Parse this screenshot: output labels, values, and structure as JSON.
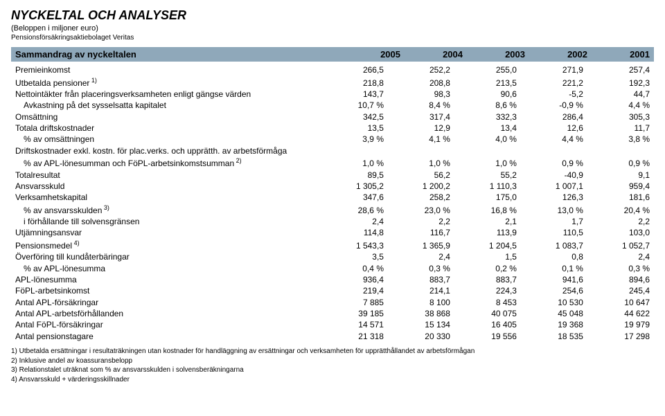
{
  "header": {
    "title": "NYCKELTAL OCH ANALYSER",
    "subtitle": "(Beloppen i miljoner euro)",
    "company": "Pensionsförsäkringsaktiebolaget Veritas"
  },
  "band": {
    "label": "Sammandrag av nyckeltalen",
    "years": [
      "2005",
      "2004",
      "2003",
      "2002",
      "2001"
    ],
    "bg_color": "#8fa8ba"
  },
  "rows": [
    {
      "label": "Premieinkomst",
      "v": [
        "266,5",
        "252,2",
        "255,0",
        "271,9",
        "257,4"
      ]
    },
    {
      "label": "Utbetalda pensioner",
      "sup": "1)",
      "v": [
        "218,8",
        "208,8",
        "213,5",
        "221,2",
        "192,3"
      ]
    },
    {
      "label": "Nettointäkter från placeringsverksamheten enligt gängse värden",
      "v": [
        "143,7",
        "98,3",
        "90,6",
        "-5,2",
        "44,7"
      ]
    },
    {
      "label": "Avkastning på det sysselsatta kapitalet",
      "indent": 1,
      "v": [
        "10,7 %",
        "8,4 %",
        "8,6 %",
        "-0,9 %",
        "4,4 %"
      ]
    },
    {
      "label": "Omsättning",
      "v": [
        "342,5",
        "317,4",
        "332,3",
        "286,4",
        "305,3"
      ]
    },
    {
      "label": "Totala driftskostnader",
      "v": [
        "13,5",
        "12,9",
        "13,4",
        "12,6",
        "11,7"
      ]
    },
    {
      "label": "% av omsättningen",
      "indent": 1,
      "v": [
        "3,9 %",
        "4,1 %",
        "4,0 %",
        "4,4 %",
        "3,8 %"
      ]
    },
    {
      "label": "Driftskostnader exkl. kostn. för plac.verks. och upprätth. av arbetsförmåga",
      "v": [
        "",
        "",
        "",
        "",
        ""
      ]
    },
    {
      "label": "% av APL-lönesumman och FöPL-arbetsinkomstsumman",
      "sup": "2)",
      "indent": 1,
      "v": [
        "1,0 %",
        "1,0 %",
        "1,0 %",
        "0,9 %",
        "0,9 %"
      ]
    },
    {
      "label": "Totalresultat",
      "v": [
        "89,5",
        "56,2",
        "55,2",
        "-40,9",
        "9,1"
      ]
    },
    {
      "label": "Ansvarsskuld",
      "v": [
        "1 305,2",
        "1 200,2",
        "1 110,3",
        "1 007,1",
        "959,4"
      ]
    },
    {
      "label": "Verksamhetskapital",
      "v": [
        "347,6",
        "258,2",
        "175,0",
        "126,3",
        "181,6"
      ]
    },
    {
      "label": "% av ansvarsskulden",
      "sup": "3)",
      "indent": 1,
      "v": [
        "28,6 %",
        "23,0 %",
        "16,8 %",
        "13,0 %",
        "20,4 %"
      ]
    },
    {
      "label": "i förhållande till solvensgränsen",
      "indent": 1,
      "v": [
        "2,4",
        "2,2",
        "2,1",
        "1,7",
        "2,2"
      ]
    },
    {
      "label": "Utjämningsansvar",
      "v": [
        "114,8",
        "116,7",
        "113,9",
        "110,5",
        "103,0"
      ]
    },
    {
      "label": "Pensionsmedel",
      "sup": "4)",
      "v": [
        "1 543,3",
        "1 365,9",
        "1 204,5",
        "1 083,7",
        "1 052,7"
      ]
    },
    {
      "label": "Överföring till kundåterbäringar",
      "v": [
        "3,5",
        "2,4",
        "1,5",
        "0,8",
        "2,4"
      ]
    },
    {
      "label": "% av APL-lönesumma",
      "indent": 1,
      "v": [
        "0,4 %",
        "0,3 %",
        "0,2 %",
        "0,1 %",
        "0,3 %"
      ]
    },
    {
      "label": "APL-lönesumma",
      "v": [
        "936,4",
        "883,7",
        "883,7",
        "941,6",
        "894,6"
      ]
    },
    {
      "label": "FöPL-arbetsinkomst",
      "v": [
        "219,4",
        "214,1",
        "224,3",
        "254,6",
        "245,4"
      ]
    },
    {
      "label": "Antal APL-försäkringar",
      "v": [
        "7 885",
        "8 100",
        "8 453",
        "10 530",
        "10 647"
      ]
    },
    {
      "label": "Antal APL-arbetsförhållanden",
      "v": [
        "39 185",
        "38 868",
        "40 075",
        "45 048",
        "44 622"
      ]
    },
    {
      "label": "Antal FöPL-försäkringar",
      "v": [
        "14 571",
        "15 134",
        "16 405",
        "19 368",
        "19 979"
      ]
    },
    {
      "label": "Antal pensionstagare",
      "v": [
        "21 318",
        "20 330",
        "19 556",
        "18 535",
        "17 298"
      ]
    }
  ],
  "footnotes": [
    "1) Utbetalda ersättningar i resultaträkningen utan kostnader för handläggning av ersättningar och verksamheten för upprätthållandet av arbetsförmågan",
    "2) Inklusive andel av koassuransbelopp",
    "3) Relationstalet uträknat som % av ansvarsskulden i solvensberäkningarna",
    "4) Ansvarsskuld + värderingsskillnader"
  ]
}
